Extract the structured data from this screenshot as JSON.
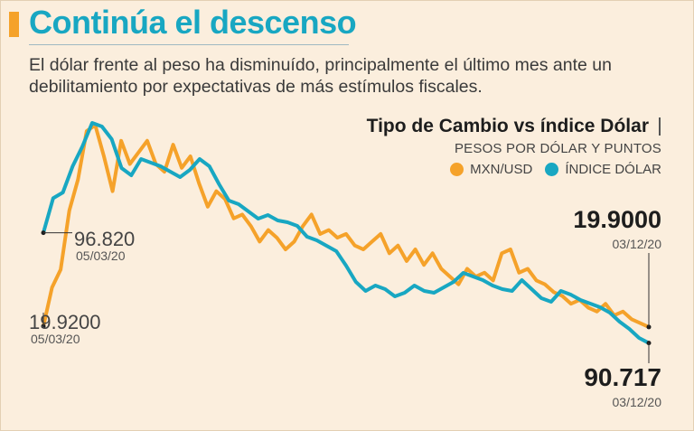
{
  "header": {
    "title": "Continúa el descenso",
    "subtitle": "El dólar frente al peso ha disminuído, principalmente el último mes ante un debilitamiento por expectativas de más estímulos fiscales."
  },
  "legend": {
    "title": "Tipo de Cambio vs índice Dólar",
    "units": "PESOS POR DÓLAR Y PUNTOS",
    "items": [
      {
        "label": "MXN/USD",
        "color": "#f5a22a"
      },
      {
        "label": "ÍNDICE DÓLAR",
        "color": "#18a7c2"
      }
    ]
  },
  "annotations": {
    "mxn_start_value": "19.9200",
    "mxn_start_date": "05/03/20",
    "dxy_start_value": "96.820",
    "dxy_start_date": "05/03/20",
    "mxn_end_value": "19.9000",
    "mxn_end_date": "03/12/20",
    "dxy_end_value": "90.717",
    "dxy_end_date": "03/12/20"
  },
  "chart_data": {
    "type": "line",
    "title": "Tipo de Cambio vs índice Dólar",
    "xlabel": "",
    "ylabel": "PESOS POR DÓLAR Y PUNTOS",
    "x_range": [
      "05/03/20",
      "03/12/20"
    ],
    "grid": false,
    "legend_position": "top-right",
    "series": [
      {
        "name": "MXN/USD",
        "color": "#f5a22a",
        "ylim": [
          19.2,
          25.3
        ],
        "values": [
          19.92,
          20.92,
          21.38,
          22.9,
          23.7,
          24.95,
          25.1,
          24.3,
          23.4,
          24.7,
          24.1,
          24.4,
          24.7,
          24.1,
          23.9,
          24.6,
          24.0,
          24.3,
          23.6,
          23.0,
          23.4,
          23.2,
          22.7,
          22.8,
          22.5,
          22.1,
          22.4,
          22.2,
          21.9,
          22.1,
          22.5,
          22.8,
          22.3,
          22.4,
          22.2,
          22.3,
          22.0,
          21.9,
          22.1,
          22.3,
          21.8,
          22.0,
          21.6,
          21.9,
          21.5,
          21.8,
          21.4,
          21.2,
          21.0,
          21.4,
          21.2,
          21.3,
          21.1,
          21.8,
          21.9,
          21.3,
          21.4,
          21.1,
          21.0,
          20.8,
          20.7,
          20.5,
          20.6,
          20.4,
          20.3,
          20.5,
          20.2,
          20.3,
          20.1,
          20.0,
          19.9
        ]
      },
      {
        "name": "ÍNDICE DÓLAR",
        "color": "#18a7c2",
        "ylim": [
          90.1,
          103.2
        ],
        "values": [
          96.82,
          98.73,
          99.05,
          100.5,
          101.6,
          102.9,
          102.7,
          102.0,
          100.4,
          100.0,
          100.9,
          100.7,
          100.5,
          100.2,
          99.9,
          100.3,
          100.9,
          100.5,
          99.5,
          98.6,
          98.4,
          98.0,
          97.6,
          97.8,
          97.5,
          97.4,
          97.2,
          96.6,
          96.4,
          96.1,
          95.8,
          95.0,
          94.1,
          93.6,
          93.9,
          93.7,
          93.3,
          93.5,
          93.9,
          93.6,
          93.5,
          93.8,
          94.1,
          94.6,
          94.4,
          94.2,
          93.9,
          93.7,
          93.6,
          94.2,
          93.7,
          93.2,
          93.0,
          93.6,
          93.4,
          93.1,
          92.9,
          92.7,
          92.4,
          91.9,
          91.5,
          91.0,
          90.717
        ]
      }
    ]
  }
}
